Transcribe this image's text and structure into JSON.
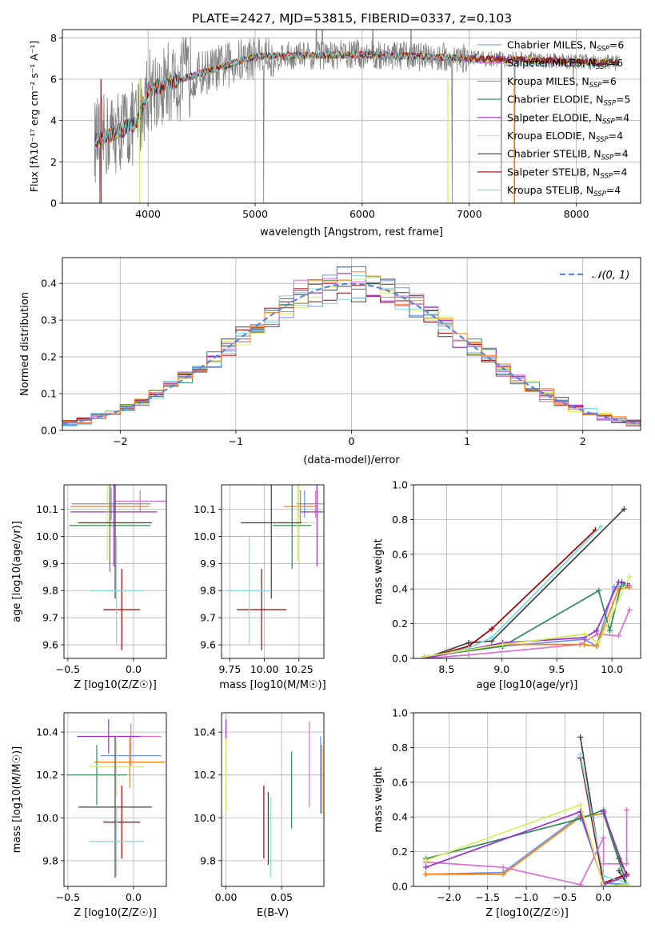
{
  "title": "PLATE=2427, MJD=53815, FIBERID=0337, z=0.103",
  "colors": {
    "c_miles": "#6495ed",
    "s_miles": "#da70d6",
    "k_miles": "#ff7f0e",
    "c_elodie": "#2e8b57",
    "s_elodie": "#9932cc",
    "k_elodie": "#d4ed5a",
    "c_stelib": "#404040",
    "s_stelib": "#a00000",
    "k_stelib": "#7fdcdc",
    "data": "#808080",
    "normal": "#5b86d6"
  },
  "chart_data": [
    {
      "type": "line",
      "name": "spectrum",
      "xlabel": "wavelength [Angstrom, rest frame]",
      "ylabel": "Flux [f_λ10^-17 erg cm^-2 s^-1 A^-1]",
      "xlim": [
        3200,
        8600
      ],
      "ylim": [
        0,
        8.4
      ],
      "xticks": [
        "4000",
        "5000",
        "6000",
        "7000",
        "8000"
      ],
      "yticks": [
        "0",
        "2",
        "4",
        "6",
        "8"
      ],
      "legend_position": "right",
      "legend": [
        {
          "main": "Chabrier MILES, N",
          "sub": "SSP",
          "suffix": "=6"
        },
        {
          "main": "Salpeter MILES, N",
          "sub": "SSP",
          "suffix": "=6"
        },
        {
          "main": "Kroupa MILES, N",
          "sub": "SSP",
          "suffix": "=6"
        },
        {
          "main": "Chabrier ELODIE, N",
          "sub": "SSP",
          "suffix": "=5"
        },
        {
          "main": "Salpeter ELODIE, N",
          "sub": "SSP",
          "suffix": "=4"
        },
        {
          "main": "Kroupa ELODIE, N",
          "sub": "SSP",
          "suffix": "=4"
        },
        {
          "main": "Chabrier STELIB, N",
          "sub": "SSP",
          "suffix": "=4"
        },
        {
          "main": "Salpeter STELIB, N",
          "sub": "SSP",
          "suffix": "=4"
        },
        {
          "main": "Kroupa STELIB, N",
          "sub": "SSP",
          "suffix": "=4"
        }
      ]
    },
    {
      "type": "bar",
      "name": "residual-histogram",
      "xlabel": "(data-model)/error",
      "ylabel": "Normed distribution",
      "xlim": [
        -2.5,
        2.5
      ],
      "ylim": [
        0,
        0.47
      ],
      "xticks": [
        "−2",
        "−1",
        "0",
        "1",
        "2"
      ],
      "yticks": [
        "0.0",
        "0.1",
        "0.2",
        "0.3",
        "0.4"
      ],
      "legend_label": "𝒩(0, 1)",
      "legend_position": "top-right"
    },
    {
      "type": "scatter",
      "name": "age-vs-Z",
      "xlabel": "Z [log10(Z/Z☉)]",
      "ylabel": "age [log10(age/yr)]",
      "xlim": [
        -0.53,
        0.25
      ],
      "ylim": [
        9.55,
        10.19
      ],
      "xticks": [
        "−0.5",
        "0.0"
      ],
      "yticks": [
        "9.6",
        "9.7",
        "9.8",
        "9.9",
        "10.0",
        "10.1"
      ],
      "points": [
        {
          "s": "c_miles",
          "x": -0.17,
          "xe": 0.3,
          "y": 10.12,
          "ye": 0.06
        },
        {
          "s": "s_miles",
          "x": 0.05,
          "xe": 0.2,
          "y": 10.13,
          "ye": 0.04
        },
        {
          "s": "k_miles",
          "x": -0.18,
          "xe": 0.3,
          "y": 10.11,
          "ye": 0.06
        },
        {
          "s": "c_elodie",
          "x": -0.18,
          "xe": 0.31,
          "y": 10.04,
          "ye": 0.17
        },
        {
          "s": "s_elodie",
          "x": -0.15,
          "xe": 0.33,
          "y": 10.09,
          "ye": 0.2
        },
        {
          "s": "k_elodie",
          "x": -0.2,
          "xe": 0.24,
          "y": 10.05,
          "ye": 0.14
        },
        {
          "s": "c_stelib",
          "x": -0.14,
          "xe": 0.28,
          "y": 10.05,
          "ye": 0.28
        },
        {
          "s": "s_stelib",
          "x": -0.09,
          "xe": 0.14,
          "y": 9.73,
          "ye": 0.15
        },
        {
          "s": "k_stelib",
          "x": -0.13,
          "xe": 0.21,
          "y": 9.8,
          "ye": 0.2
        }
      ]
    },
    {
      "type": "scatter",
      "name": "age-vs-mass",
      "xlabel": "mass [log10(M/M☉)]",
      "ylabel": "",
      "xlim": [
        9.69,
        10.43
      ],
      "ylim": [
        9.55,
        10.19
      ],
      "xticks": [
        "9.75",
        "10.00",
        "10.25"
      ],
      "yticks": [
        "9.6",
        "9.7",
        "9.8",
        "9.9",
        "10.0",
        "10.1"
      ],
      "points": [
        {
          "s": "c_miles",
          "x": 10.29,
          "xe": 0.06,
          "y": 10.12,
          "ye": 0.05
        },
        {
          "s": "s_miles",
          "x": 10.37,
          "xe": 0.08,
          "y": 10.12,
          "ye": 0.05
        },
        {
          "s": "k_miles",
          "x": 10.26,
          "xe": 0.12,
          "y": 10.11,
          "ye": 0.06
        },
        {
          "s": "c_elodie",
          "x": 10.2,
          "xe": 0.14,
          "y": 10.04,
          "ye": 0.16
        },
        {
          "s": "s_elodie",
          "x": 10.38,
          "xe": 0.12,
          "y": 10.09,
          "ye": 0.2
        },
        {
          "s": "k_elodie",
          "x": 10.24,
          "xe": 0.14,
          "y": 10.05,
          "ye": 0.14
        },
        {
          "s": "c_stelib",
          "x": 10.05,
          "xe": 0.22,
          "y": 10.05,
          "ye": 0.28
        },
        {
          "s": "s_stelib",
          "x": 9.98,
          "xe": 0.18,
          "y": 9.73,
          "ye": 0.15
        },
        {
          "s": "k_stelib",
          "x": 9.89,
          "xe": 0.16,
          "y": 9.8,
          "ye": 0.2
        }
      ]
    },
    {
      "type": "line",
      "name": "mass-weight-vs-age",
      "xlabel": "age [log10(age/yr)]",
      "ylabel": "mass weight",
      "xlim": [
        8.2,
        10.26
      ],
      "ylim": [
        0,
        1.0
      ],
      "xticks": [
        "8.5",
        "9.0",
        "9.5",
        "10.0"
      ],
      "yticks": [
        "0.0",
        "0.2",
        "0.4",
        "0.6",
        "0.8",
        "1.0"
      ],
      "series": [
        {
          "s": "c_stelib",
          "x": [
            8.3,
            8.7,
            8.91,
            10.11
          ],
          "y": [
            0.0,
            0.09,
            0.1,
            0.86
          ]
        },
        {
          "s": "s_stelib",
          "x": [
            8.3,
            8.7,
            8.91,
            9.85
          ],
          "y": [
            0.0,
            0.07,
            0.17,
            0.74
          ]
        },
        {
          "s": "k_stelib",
          "x": [
            8.3,
            8.7,
            8.91,
            9.9
          ],
          "y": [
            0.0,
            0.06,
            0.12,
            0.76
          ]
        },
        {
          "s": "c_miles",
          "x": [
            8.3,
            9.01,
            9.75,
            9.86,
            10.02,
            10.16
          ],
          "y": [
            0.01,
            0.07,
            0.11,
            0.07,
            0.41,
            0.42
          ]
        },
        {
          "s": "s_miles",
          "x": [
            8.3,
            8.7,
            9.71,
            9.87,
            10.06,
            10.16
          ],
          "y": [
            0.0,
            0.02,
            0.08,
            0.14,
            0.13,
            0.28
          ]
        },
        {
          "s": "k_miles",
          "x": [
            8.3,
            9.01,
            9.75,
            9.86,
            10.06,
            10.16
          ],
          "y": [
            0.01,
            0.08,
            0.08,
            0.07,
            0.4,
            0.41
          ]
        },
        {
          "s": "c_elodie",
          "x": [
            8.3,
            9.01,
            9.88,
            9.98,
            10.09,
            10.12
          ],
          "y": [
            0.01,
            0.07,
            0.39,
            0.16,
            0.44,
            0.42
          ]
        },
        {
          "s": "s_elodie",
          "x": [
            8.3,
            9.01,
            9.75,
            9.86,
            10.06,
            10.14
          ],
          "y": [
            0.0,
            0.09,
            0.12,
            0.16,
            0.44,
            0.43
          ]
        },
        {
          "s": "k_elodie",
          "x": [
            8.3,
            9.01,
            9.75,
            9.88,
            10.16
          ],
          "y": [
            0.01,
            0.08,
            0.14,
            0.09,
            0.47
          ]
        }
      ]
    },
    {
      "type": "scatter",
      "name": "mass-vs-Z",
      "xlabel": "Z [log10(Z/Z☉)]",
      "ylabel": "mass [log10(M/M☉)]",
      "xlim": [
        -0.53,
        0.25
      ],
      "ylim": [
        9.68,
        10.49
      ],
      "xticks": [
        "−0.5",
        "0.0"
      ],
      "yticks": [
        "9.8",
        "10.0",
        "10.2",
        "10.4"
      ],
      "points": [
        {
          "s": "c_miles",
          "x": -0.02,
          "xe": 0.23,
          "y": 10.29,
          "ye": 0.05
        },
        {
          "s": "s_miles",
          "x": -0.02,
          "xe": 0.23,
          "y": 10.38,
          "ye": 0.06
        },
        {
          "s": "k_miles",
          "x": -0.03,
          "xe": 0.27,
          "y": 10.26,
          "ye": 0.12
        },
        {
          "s": "c_elodie",
          "x": -0.28,
          "xe": 0.23,
          "y": 10.2,
          "ye": 0.14
        },
        {
          "s": "s_elodie",
          "x": -0.19,
          "xe": 0.24,
          "y": 10.38,
          "ye": 0.08
        },
        {
          "s": "k_elodie",
          "x": -0.13,
          "xe": 0.21,
          "y": 10.24,
          "ye": 0.14
        },
        {
          "s": "c_stelib",
          "x": -0.14,
          "xe": 0.28,
          "y": 10.05,
          "ye": 0.33
        },
        {
          "s": "s_stelib",
          "x": -0.09,
          "xe": 0.14,
          "y": 9.98,
          "ye": 0.17
        },
        {
          "s": "k_stelib",
          "x": -0.13,
          "xe": 0.21,
          "y": 9.89,
          "ye": 0.16
        }
      ]
    },
    {
      "type": "scatter",
      "name": "mass-vs-ebv",
      "xlabel": "E(B-V)",
      "ylabel": "",
      "xlim": [
        -0.004,
        0.088
      ],
      "ylim": [
        9.68,
        10.49
      ],
      "xticks": [
        "0.00",
        "0.05"
      ],
      "yticks": [
        "9.8",
        "10.0",
        "10.2",
        "10.4"
      ],
      "points": [
        {
          "s": "c_miles",
          "x": 0.085,
          "xe": 0,
          "y": 10.2,
          "ye": 0.18
        },
        {
          "s": "s_miles",
          "x": 0.075,
          "xe": 0,
          "y": 10.25,
          "ye": 0.2
        },
        {
          "s": "k_miles",
          "x": 0.086,
          "xe": 0,
          "y": 10.18,
          "ye": 0.16
        },
        {
          "s": "c_elodie",
          "x": 0.059,
          "xe": 0,
          "y": 10.13,
          "ye": 0.18
        },
        {
          "s": "s_elodie",
          "x": 0.0,
          "xe": 0,
          "y": 10.4,
          "ye": 0.06
        },
        {
          "s": "k_elodie",
          "x": 0.0,
          "xe": 0,
          "y": 10.2,
          "ye": 0.17
        },
        {
          "s": "c_stelib",
          "x": 0.038,
          "xe": 0,
          "y": 9.95,
          "ye": 0.17
        },
        {
          "s": "s_stelib",
          "x": 0.034,
          "xe": 0,
          "y": 9.98,
          "ye": 0.17
        },
        {
          "s": "k_stelib",
          "x": 0.04,
          "xe": 0,
          "y": 9.91,
          "ye": 0.19
        }
      ]
    },
    {
      "type": "line",
      "name": "mass-weight-vs-Z",
      "xlabel": "Z [log10(Z/Z☉)]",
      "ylabel": "mass weight",
      "xlim": [
        -2.46,
        0.48
      ],
      "ylim": [
        0,
        1.0
      ],
      "xticks": [
        "−2.0",
        "−1.5",
        "−1.0",
        "−0.5",
        "0.0"
      ],
      "yticks": [
        "0.0",
        "0.2",
        "0.4",
        "0.6",
        "0.8",
        "1.0"
      ],
      "series": [
        {
          "s": "c_stelib",
          "x": [
            -0.3,
            0.0,
            0.3,
            0.2
          ],
          "y": [
            0.86,
            0.02,
            0.01,
            0.09
          ]
        },
        {
          "s": "s_stelib",
          "x": [
            -0.3,
            0.0,
            0.3,
            0.2
          ],
          "y": [
            0.74,
            0.02,
            0.07,
            0.16
          ]
        },
        {
          "s": "k_stelib",
          "x": [
            -0.3,
            0.0,
            0.3
          ],
          "y": [
            0.76,
            0.06,
            0.02
          ]
        },
        {
          "s": "c_miles",
          "x": [
            -2.3,
            -1.3,
            -0.3,
            0.0,
            0.3
          ],
          "y": [
            0.07,
            0.08,
            0.41,
            0.02,
            0.01
          ]
        },
        {
          "s": "s_miles",
          "x": [
            -2.3,
            -1.3,
            -0.3,
            0.0,
            0.0,
            0.3,
            0.3
          ],
          "y": [
            0.14,
            0.11,
            0.01,
            0.28,
            0.13,
            0.13,
            0.44
          ]
        },
        {
          "s": "k_miles",
          "x": [
            -2.3,
            -1.3,
            -0.3,
            0.0,
            0.3
          ],
          "y": [
            0.07,
            0.07,
            0.4,
            0.42,
            0.01
          ]
        },
        {
          "s": "c_elodie",
          "x": [
            -2.3,
            -0.3,
            0.0,
            0.3,
            0.0
          ],
          "y": [
            0.16,
            0.39,
            0.44,
            0.01,
            0.42
          ]
        },
        {
          "s": "s_elodie",
          "x": [
            -2.3,
            -0.3,
            0.0,
            0.3,
            0.0
          ],
          "y": [
            0.11,
            0.43,
            0.01,
            0.06,
            0.43
          ]
        },
        {
          "s": "k_elodie",
          "x": [
            -2.3,
            -0.3,
            0.0,
            0.3
          ],
          "y": [
            0.15,
            0.47,
            0.0,
            0.01
          ]
        }
      ]
    }
  ]
}
